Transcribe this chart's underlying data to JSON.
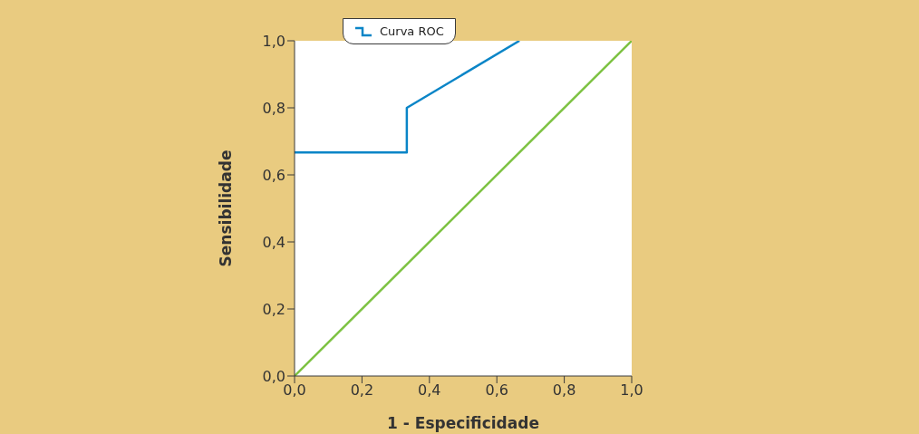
{
  "chart_data": {
    "type": "line",
    "xlabel": "1 - Especificidade",
    "ylabel": "Sensibilidade",
    "series": [
      {
        "name": "Curva ROC",
        "color": "#0a85c7",
        "x": [
          0,
          0.333,
          0.333,
          0.667
        ],
        "values": [
          0.667,
          0.667,
          0.8,
          1.0
        ]
      },
      {
        "color": "#7dc242",
        "x": [
          0,
          1
        ],
        "values": [
          0,
          1
        ]
      }
    ],
    "xlim": [
      0,
      1
    ],
    "ylim": [
      0,
      1
    ],
    "xticks": [
      {
        "value": 0,
        "label": "0,0"
      },
      {
        "value": 0.2,
        "label": "0,2"
      },
      {
        "value": 0.4,
        "label": "0,4"
      },
      {
        "value": 0.6,
        "label": "0,6"
      },
      {
        "value": 0.8,
        "label": "0,8"
      },
      {
        "value": 1,
        "label": "1,0"
      }
    ],
    "yticks": [
      {
        "value": 0,
        "label": "0,0"
      },
      {
        "value": 0.2,
        "label": "0,2"
      },
      {
        "value": 0.4,
        "label": "0,4"
      },
      {
        "value": 0.6,
        "label": "0,6"
      },
      {
        "value": 0.8,
        "label": "0,8"
      },
      {
        "value": 1,
        "label": "1,0"
      }
    ],
    "legend": "top left",
    "grid": false,
    "marker": "none",
    "line_style": "solid"
  }
}
